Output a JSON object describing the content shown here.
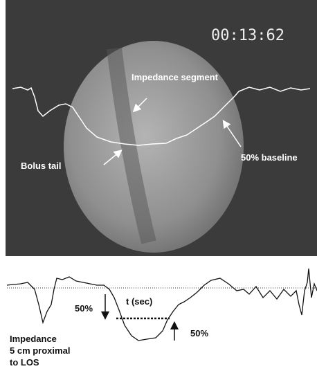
{
  "fluoroscopy": {
    "timestamp": "00:13:62",
    "labels": {
      "impedance_segment": "Impedance segment",
      "bolus_tail": "Bolus tail",
      "baseline": "50% baseline"
    }
  },
  "trace": {
    "drop_label": "50%",
    "duration_label": "t (sec)",
    "recovery_label": "50%",
    "caption": [
      "Impedance",
      "5 cm proximal",
      "to LOS"
    ]
  }
}
